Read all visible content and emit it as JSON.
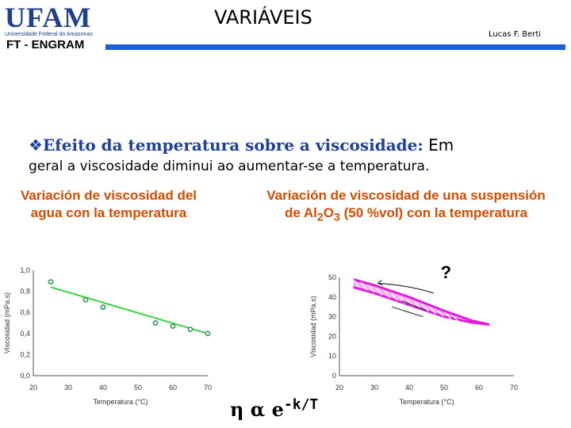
{
  "header": {
    "logo_text": "UFAM",
    "logo_subtitle": "Universidade Federal do Amazonas",
    "department": "FT - ENGRAM",
    "title": "VARIÁVEIS",
    "author": "Lucas F. Berti",
    "accent_color": "#1d5fd8"
  },
  "content": {
    "bullet_icon": "diamond-bullet-icon",
    "bullet_bold": "Efeito da temperatura sobre a viscosidade:",
    "bullet_rest": " Em",
    "line2": "geral a viscosidade diminui ao aumentar-se a temperatura.",
    "subtitle_left_1": "Variación de viscosidad del",
    "subtitle_left_2": "agua con la temperatura",
    "subtitle_right_1": "Variación de viscosidad de una suspensión",
    "subtitle_right_2_a": "de Al",
    "subtitle_right_2_sub1": "2",
    "subtitle_right_2_b": "O",
    "subtitle_right_2_sub2": "3",
    "subtitle_right_2_c": " (50 %vol) con la temperatura",
    "formula_main": "η α e",
    "formula_exp": "-k/T",
    "subtitle_color": "#d64b00"
  },
  "chart_data": [
    {
      "type": "scatter",
      "xlabel": "Temperatura (°C)",
      "ylabel": "Viscosidad (mPa.s)",
      "xlim": [
        20,
        70
      ],
      "ylim": [
        0,
        1.0
      ],
      "xticks": [
        "20",
        "30",
        "40",
        "50",
        "60",
        "70"
      ],
      "yticks": [
        "0,0",
        "0,2",
        "0,4",
        "0,6",
        "0,8",
        "1,0"
      ],
      "points": [
        {
          "x": 25,
          "y": 0.89
        },
        {
          "x": 35,
          "y": 0.72
        },
        {
          "x": 40,
          "y": 0.65
        },
        {
          "x": 55,
          "y": 0.5
        },
        {
          "x": 60,
          "y": 0.47
        },
        {
          "x": 65,
          "y": 0.44
        },
        {
          "x": 70,
          "y": 0.4
        }
      ],
      "trendline": [
        {
          "x": 25,
          "y": 0.84
        },
        {
          "x": 70,
          "y": 0.4
        }
      ],
      "point_color": "#2a9a5a",
      "line_color": "#3ad43a"
    },
    {
      "type": "line",
      "xlabel": "Temperatura (°C)",
      "ylabel": "Viscosidad (mPa.s)",
      "xlim": [
        20,
        70
      ],
      "ylim": [
        0,
        50
      ],
      "xticks": [
        "20",
        "30",
        "40",
        "50",
        "60",
        "70"
      ],
      "yticks": [
        "0",
        "10",
        "20",
        "30",
        "40",
        "50"
      ],
      "upper_curve": [
        {
          "x": 24,
          "y": 49
        },
        {
          "x": 30,
          "y": 46
        },
        {
          "x": 40,
          "y": 40
        },
        {
          "x": 50,
          "y": 33
        },
        {
          "x": 58,
          "y": 28
        },
        {
          "x": 63,
          "y": 26
        }
      ],
      "lower_curve": [
        {
          "x": 24,
          "y": 45
        },
        {
          "x": 30,
          "y": 42
        },
        {
          "x": 40,
          "y": 36
        },
        {
          "x": 50,
          "y": 30
        },
        {
          "x": 58,
          "y": 27
        },
        {
          "x": 63,
          "y": 26
        }
      ],
      "annotation": "?",
      "curve_color": "#e020d8"
    }
  ]
}
